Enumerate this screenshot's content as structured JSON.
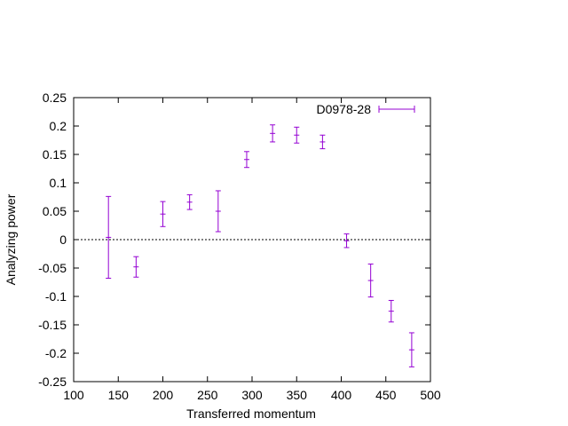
{
  "chart_data": {
    "type": "scatter",
    "title": "",
    "xlabel": "Transferred momentum",
    "ylabel": "Analyzing power",
    "xlim": [
      100,
      500
    ],
    "ylim": [
      -0.25,
      0.25
    ],
    "xticks": [
      "100",
      "150",
      "200",
      "250",
      "300",
      "350",
      "400",
      "450",
      "500"
    ],
    "yticks": [
      "0.25",
      "0.2",
      "0.15",
      "0.1",
      "0.05",
      "0",
      "-0.05",
      "-0.1",
      "-0.15",
      "-0.2",
      "-0.25"
    ],
    "grid": false,
    "zero_line": true,
    "legend_position": "top-right",
    "series": [
      {
        "name": "D0978-28",
        "color": "#9400d3",
        "points": [
          {
            "x": 139,
            "y": 0.004,
            "err": 0.072
          },
          {
            "x": 170,
            "y": -0.048,
            "err": 0.018
          },
          {
            "x": 200,
            "y": 0.045,
            "err": 0.022
          },
          {
            "x": 230,
            "y": 0.066,
            "err": 0.013
          },
          {
            "x": 262,
            "y": 0.05,
            "err": 0.036
          },
          {
            "x": 294,
            "y": 0.141,
            "err": 0.014
          },
          {
            "x": 323,
            "y": 0.187,
            "err": 0.015
          },
          {
            "x": 350,
            "y": 0.184,
            "err": 0.014
          },
          {
            "x": 379,
            "y": 0.172,
            "err": 0.012
          },
          {
            "x": 406,
            "y": -0.002,
            "err": 0.012
          },
          {
            "x": 433,
            "y": -0.072,
            "err": 0.029
          },
          {
            "x": 456,
            "y": -0.126,
            "err": 0.019
          },
          {
            "x": 479,
            "y": -0.194,
            "err": 0.03
          }
        ]
      }
    ]
  }
}
